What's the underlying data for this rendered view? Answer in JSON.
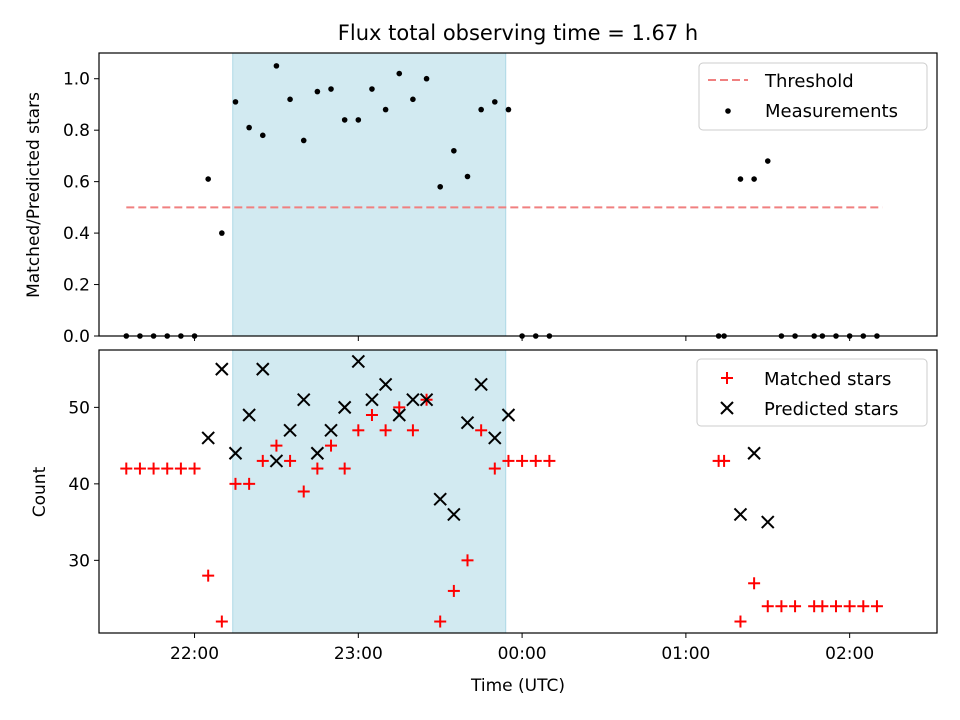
{
  "figure": {
    "title": "Flux total observing time = 1.67 h"
  },
  "chart_data": [
    {
      "type": "scatter",
      "panel": "top",
      "ylabel": "Matched/Predicted stars",
      "ylim": [
        0,
        1.1
      ],
      "yticks": [
        0.0,
        0.2,
        0.4,
        0.6,
        0.8,
        1.0
      ],
      "ytick_labels": [
        "0.0",
        "0.2",
        "0.4",
        "0.6",
        "0.8",
        "1.0"
      ],
      "xlim": [
        "21:25",
        "02:32"
      ],
      "grid": false,
      "legend_position": "top-right",
      "shaded_span": {
        "from": "22:14",
        "to": "23:54",
        "color": "#add8e6"
      },
      "threshold": {
        "name": "Threshold",
        "value": 0.5,
        "from": "21:35",
        "to": "02:12",
        "color": "#f08080",
        "style": "dashed"
      },
      "series": [
        {
          "name": "Measurements",
          "color": "#000000",
          "marker": "dot",
          "points": [
            [
              "21:35",
              0.0
            ],
            [
              "21:40",
              0.0
            ],
            [
              "21:45",
              0.0
            ],
            [
              "21:50",
              0.0
            ],
            [
              "21:55",
              0.0
            ],
            [
              "22:00",
              0.0
            ],
            [
              "22:05",
              0.61
            ],
            [
              "22:10",
              0.4
            ],
            [
              "22:15",
              0.91
            ],
            [
              "22:20",
              0.81
            ],
            [
              "22:25",
              0.78
            ],
            [
              "22:30",
              1.05
            ],
            [
              "22:35",
              0.92
            ],
            [
              "22:40",
              0.76
            ],
            [
              "22:45",
              0.95
            ],
            [
              "22:50",
              0.96
            ],
            [
              "22:55",
              0.84
            ],
            [
              "23:00",
              0.84
            ],
            [
              "23:05",
              0.96
            ],
            [
              "23:10",
              0.88
            ],
            [
              "23:15",
              1.02
            ],
            [
              "23:20",
              0.92
            ],
            [
              "23:25",
              1.0
            ],
            [
              "23:30",
              0.58
            ],
            [
              "23:35",
              0.72
            ],
            [
              "23:40",
              0.62
            ],
            [
              "23:45",
              0.88
            ],
            [
              "23:50",
              0.91
            ],
            [
              "23:55",
              0.88
            ],
            [
              "00:00",
              0.0
            ],
            [
              "00:05",
              0.0
            ],
            [
              "00:10",
              0.0
            ],
            [
              "01:12",
              0.0
            ],
            [
              "01:14",
              0.0
            ],
            [
              "01:20",
              0.61
            ],
            [
              "01:25",
              0.61
            ],
            [
              "01:30",
              0.68
            ],
            [
              "01:35",
              0.0
            ],
            [
              "01:40",
              0.0
            ],
            [
              "01:47",
              0.0
            ],
            [
              "01:50",
              0.0
            ],
            [
              "01:55",
              0.0
            ],
            [
              "02:00",
              0.0
            ],
            [
              "02:05",
              0.0
            ],
            [
              "02:10",
              0.0
            ]
          ]
        }
      ]
    },
    {
      "type": "scatter",
      "panel": "bottom",
      "xlabel": "Time (UTC)",
      "ylabel": "Count",
      "ylim": [
        20.5,
        57.5
      ],
      "yticks": [
        30,
        40,
        50
      ],
      "ytick_labels": [
        "30",
        "40",
        "50"
      ],
      "xticks": [
        "22:00",
        "23:00",
        "00:00",
        "01:00",
        "02:00"
      ],
      "xlim": [
        "21:25",
        "02:32"
      ],
      "grid": false,
      "legend_position": "top-right",
      "shaded_span": {
        "from": "22:14",
        "to": "23:54",
        "color": "#add8e6"
      },
      "series": [
        {
          "name": "Matched stars",
          "color": "#ff0000",
          "marker": "plus",
          "points": [
            [
              "21:35",
              42
            ],
            [
              "21:40",
              42
            ],
            [
              "21:45",
              42
            ],
            [
              "21:50",
              42
            ],
            [
              "21:55",
              42
            ],
            [
              "22:00",
              42
            ],
            [
              "22:05",
              28
            ],
            [
              "22:10",
              22
            ],
            [
              "22:15",
              40
            ],
            [
              "22:20",
              40
            ],
            [
              "22:25",
              43
            ],
            [
              "22:30",
              45
            ],
            [
              "22:35",
              43
            ],
            [
              "22:40",
              39
            ],
            [
              "22:45",
              42
            ],
            [
              "22:50",
              45
            ],
            [
              "22:55",
              42
            ],
            [
              "23:00",
              47
            ],
            [
              "23:05",
              49
            ],
            [
              "23:10",
              47
            ],
            [
              "23:15",
              50
            ],
            [
              "23:20",
              47
            ],
            [
              "23:25",
              51
            ],
            [
              "23:30",
              22
            ],
            [
              "23:35",
              26
            ],
            [
              "23:40",
              30
            ],
            [
              "23:45",
              47
            ],
            [
              "23:50",
              42
            ],
            [
              "23:55",
              43
            ],
            [
              "00:00",
              43
            ],
            [
              "00:05",
              43
            ],
            [
              "00:10",
              43
            ],
            [
              "01:12",
              43
            ],
            [
              "01:14",
              43
            ],
            [
              "01:20",
              22
            ],
            [
              "01:25",
              27
            ],
            [
              "01:30",
              24
            ],
            [
              "01:35",
              24
            ],
            [
              "01:40",
              24
            ],
            [
              "01:47",
              24
            ],
            [
              "01:50",
              24
            ],
            [
              "01:55",
              24
            ],
            [
              "02:00",
              24
            ],
            [
              "02:05",
              24
            ],
            [
              "02:10",
              24
            ]
          ]
        },
        {
          "name": "Predicted stars",
          "color": "#000000",
          "marker": "x",
          "points": [
            [
              "22:05",
              46
            ],
            [
              "22:10",
              55
            ],
            [
              "22:15",
              44
            ],
            [
              "22:20",
              49
            ],
            [
              "22:25",
              55
            ],
            [
              "22:30",
              43
            ],
            [
              "22:35",
              47
            ],
            [
              "22:40",
              51
            ],
            [
              "22:45",
              44
            ],
            [
              "22:50",
              47
            ],
            [
              "22:55",
              50
            ],
            [
              "23:00",
              56
            ],
            [
              "23:05",
              51
            ],
            [
              "23:10",
              53
            ],
            [
              "23:15",
              49
            ],
            [
              "23:20",
              51
            ],
            [
              "23:25",
              51
            ],
            [
              "23:30",
              38
            ],
            [
              "23:35",
              36
            ],
            [
              "23:40",
              48
            ],
            [
              "23:45",
              53
            ],
            [
              "23:50",
              46
            ],
            [
              "23:55",
              49
            ],
            [
              "01:20",
              36
            ],
            [
              "01:25",
              44
            ],
            [
              "01:30",
              35
            ]
          ]
        }
      ]
    }
  ]
}
